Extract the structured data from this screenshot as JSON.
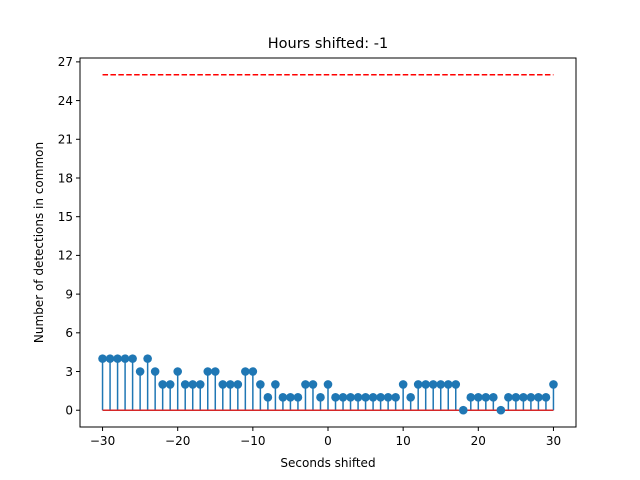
{
  "chart_data": {
    "type": "stem",
    "title": "Hours shifted: -1",
    "xlabel": "Seconds shifted",
    "ylabel": "Number of detections in common",
    "xlim": [
      -33,
      33
    ],
    "ylim": [
      -1.3,
      27.3
    ],
    "xticks": [
      -30,
      -20,
      -10,
      0,
      10,
      20,
      30
    ],
    "yticks": [
      0,
      3,
      6,
      9,
      12,
      15,
      18,
      21,
      24,
      27
    ],
    "grid": false,
    "x": [
      -30,
      -29,
      -28,
      -27,
      -26,
      -25,
      -24,
      -23,
      -22,
      -21,
      -20,
      -19,
      -18,
      -17,
      -16,
      -15,
      -14,
      -13,
      -12,
      -11,
      -10,
      -9,
      -8,
      -7,
      -6,
      -5,
      -4,
      -3,
      -2,
      -1,
      0,
      1,
      2,
      3,
      4,
      5,
      6,
      7,
      8,
      9,
      10,
      11,
      12,
      13,
      14,
      15,
      16,
      17,
      18,
      19,
      20,
      21,
      22,
      23,
      24,
      25,
      26,
      27,
      28,
      29,
      30
    ],
    "y": [
      4,
      4,
      4,
      4,
      4,
      3,
      4,
      3,
      2,
      2,
      3,
      2,
      2,
      2,
      3,
      3,
      2,
      2,
      2,
      3,
      3,
      2,
      1,
      2,
      1,
      1,
      1,
      2,
      2,
      1,
      2,
      1,
      1,
      1,
      1,
      1,
      1,
      1,
      1,
      1,
      2,
      1,
      2,
      2,
      2,
      2,
      2,
      2,
      0,
      1,
      1,
      1,
      1,
      0,
      1,
      1,
      1,
      1,
      1,
      1,
      2
    ],
    "threshold": 26,
    "colors": {
      "stem": "#1f77b4",
      "baseline": "#d62728",
      "threshold": "#ff0000"
    }
  }
}
